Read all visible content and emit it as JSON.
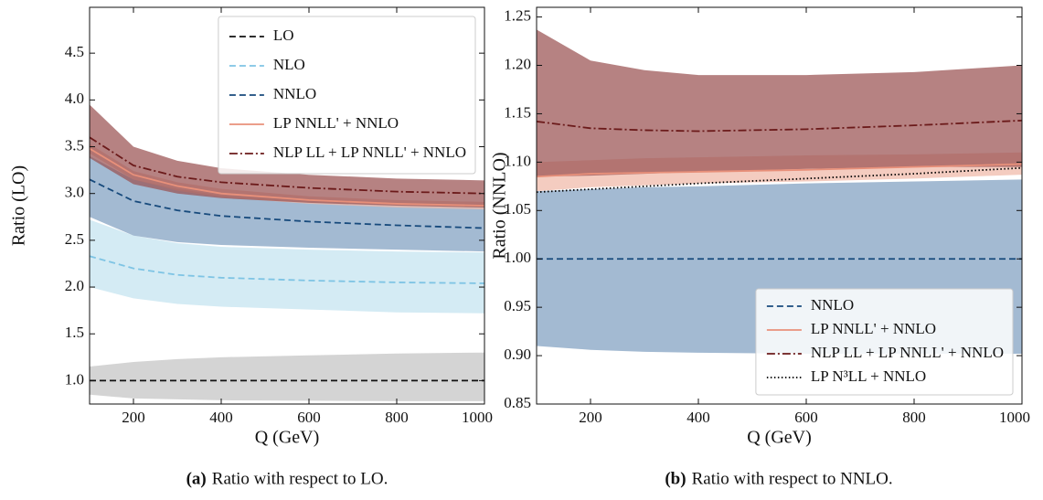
{
  "chart_data": [
    {
      "type": "line",
      "caption_label": "(a)",
      "caption": "Ratio with respect to LO.",
      "x_label": "Q (GeV)",
      "y_label": "Ratio (LO)",
      "x": [
        100,
        200,
        300,
        400,
        600,
        800,
        1000
      ],
      "xlim": [
        100,
        1000
      ],
      "xticks": [
        200,
        400,
        600,
        800,
        1000
      ],
      "ylim": [
        0.75,
        4.99
      ],
      "yticks": [
        {
          "value": 1,
          "label": "1.0"
        },
        1.5,
        {
          "value": 2,
          "label": "2.0"
        },
        2.5,
        {
          "value": 3,
          "label": "3.0"
        },
        3.5,
        {
          "value": 4,
          "label": "4.0"
        },
        4.5
      ],
      "legend": "upper right",
      "series": [
        {
          "name": "LO",
          "color": "#111111",
          "band_color": "#c4c4c4",
          "dash": "dashed",
          "values": [
            1,
            1,
            1,
            1,
            1,
            1,
            1
          ],
          "band_low": [
            0.85,
            0.81,
            0.8,
            0.79,
            0.785,
            0.78,
            0.78
          ],
          "band_high": [
            1.15,
            1.2,
            1.23,
            1.25,
            1.27,
            1.29,
            1.3
          ]
        },
        {
          "name": "NLO",
          "color": "#7ec4e4",
          "band_color": "#c4e3f0",
          "dash": "dashed",
          "values": [
            2.33,
            2.2,
            2.13,
            2.1,
            2.07,
            2.05,
            2.04
          ],
          "band_low": [
            2.0,
            1.88,
            1.82,
            1.79,
            1.76,
            1.73,
            1.72
          ],
          "band_high": [
            2.72,
            2.55,
            2.47,
            2.43,
            2.4,
            2.38,
            2.37
          ]
        },
        {
          "name": "NNLO",
          "color": "#174a7c",
          "band_color": "#7f9fc0",
          "dash": "dashed",
          "values": [
            3.15,
            2.92,
            2.82,
            2.76,
            2.7,
            2.66,
            2.63
          ],
          "band_low": [
            2.75,
            2.55,
            2.48,
            2.45,
            2.42,
            2.4,
            2.38
          ],
          "band_high": [
            3.4,
            3.15,
            3.05,
            2.98,
            2.93,
            2.9,
            2.88
          ]
        },
        {
          "name": "LP NNLL' + NNLO",
          "color": "#e8907a",
          "band_color": "#f0b8a8",
          "dash": "solid",
          "values": [
            3.48,
            3.2,
            3.08,
            3.0,
            2.93,
            2.89,
            2.87
          ],
          "band_low": [
            3.43,
            3.15,
            3.03,
            2.96,
            2.89,
            2.85,
            2.83
          ],
          "band_high": [
            3.53,
            3.24,
            3.12,
            3.05,
            2.97,
            2.93,
            2.91
          ]
        },
        {
          "name": "NLP LL + LP NNLL' + NNLO",
          "color": "#6b1a1a",
          "band_color": "#9a5252",
          "dash": "dashdot",
          "values": [
            3.6,
            3.3,
            3.18,
            3.12,
            3.06,
            3.02,
            3.0
          ],
          "band_low": [
            3.38,
            3.1,
            3.0,
            2.95,
            2.9,
            2.87,
            2.85
          ],
          "band_high": [
            3.95,
            3.5,
            3.35,
            3.27,
            3.2,
            3.16,
            3.14
          ]
        }
      ]
    },
    {
      "type": "line",
      "caption_label": "(b)",
      "caption": "Ratio with respect to NNLO.",
      "x_label": "Q (GeV)",
      "y_label": "Ratio (NNLO)",
      "x": [
        100,
        200,
        300,
        400,
        600,
        800,
        1000
      ],
      "xlim": [
        100,
        1000
      ],
      "xticks": [
        200,
        400,
        600,
        800,
        1000
      ],
      "ylim": [
        0.85,
        1.26
      ],
      "yticks": [
        0.85,
        {
          "value": 0.9,
          "label": "0.90"
        },
        0.95,
        {
          "value": 1,
          "label": "1.00"
        },
        1.05,
        {
          "value": 1.1,
          "label": "1.10"
        },
        1.15,
        {
          "value": 1.2,
          "label": "1.20"
        },
        1.25
      ],
      "legend": "lower right",
      "series": [
        {
          "name": "NNLO",
          "color": "#174a7c",
          "band_color": "#7f9fc0",
          "dash": "dashed",
          "values": [
            1,
            1,
            1,
            1,
            1,
            1,
            1
          ],
          "band_low": [
            0.91,
            0.906,
            0.904,
            0.903,
            0.902,
            0.902,
            0.902
          ],
          "band_high": [
            1.07,
            1.072,
            1.074,
            1.075,
            1.078,
            1.08,
            1.082
          ]
        },
        {
          "name": "LP NNLL' + NNLO",
          "color": "#e8907a",
          "band_color": "#f0b8a8",
          "dash": "solid",
          "values": [
            1.085,
            1.088,
            1.089,
            1.09,
            1.092,
            1.095,
            1.098
          ],
          "band_low": [
            1.07,
            1.074,
            1.076,
            1.078,
            1.08,
            1.083,
            1.087
          ],
          "band_high": [
            1.1,
            1.102,
            1.104,
            1.105,
            1.107,
            1.108,
            1.11
          ]
        },
        {
          "name": "NLP LL + LP NNLL' + NNLO",
          "color": "#6b1a1a",
          "band_color": "#9a5252",
          "dash": "dashdot",
          "values": [
            1.142,
            1.135,
            1.133,
            1.132,
            1.134,
            1.138,
            1.143
          ],
          "band_low": [
            1.085,
            1.086,
            1.088,
            1.09,
            1.093,
            1.095,
            1.095
          ],
          "band_high": [
            1.237,
            1.205,
            1.195,
            1.19,
            1.19,
            1.193,
            1.2
          ]
        },
        {
          "name": "LP N³LL + NNLO",
          "color": "#000000",
          "dash": "dotted",
          "values": [
            1.069,
            1.072,
            1.075,
            1.078,
            1.083,
            1.088,
            1.094
          ]
        }
      ]
    }
  ]
}
